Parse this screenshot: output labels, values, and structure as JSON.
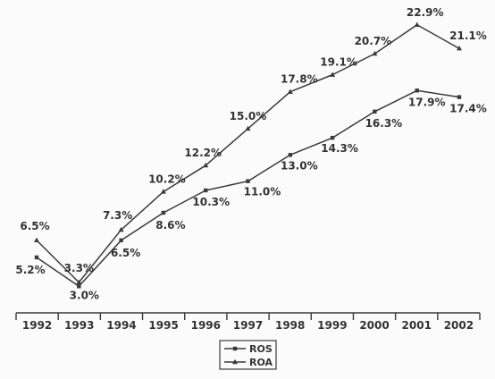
{
  "chart_data": {
    "type": "line",
    "categories": [
      "1992",
      "1993",
      "1994",
      "1995",
      "1996",
      "1997",
      "1998",
      "1999",
      "2000",
      "2001",
      "2002"
    ],
    "series": [
      {
        "name": "ROS",
        "values": [
          5.2,
          3.0,
          6.5,
          8.6,
          10.3,
          11.0,
          13.0,
          14.3,
          16.3,
          17.9,
          17.4
        ],
        "labels": [
          "5.2%",
          "3.0%",
          "6.5%",
          "8.6%",
          "10.3%",
          "11.0%",
          "13.0%",
          "14.3%",
          "16.3%",
          "17.9%",
          "17.4%"
        ],
        "marker": "square"
      },
      {
        "name": "ROA",
        "values": [
          6.5,
          3.3,
          7.3,
          10.2,
          12.2,
          15.0,
          17.8,
          19.1,
          20.7,
          22.9,
          21.1
        ],
        "labels": [
          "6.5%",
          "3.3%",
          "7.3%",
          "10.2%",
          "12.2%",
          "15.0%",
          "17.8%",
          "19.1%",
          "20.7%",
          "22.9%",
          "21.1%"
        ],
        "marker": "triangle"
      }
    ],
    "ylim": [
      0,
      25
    ],
    "legend_position": "bottom",
    "grid": false,
    "line_color": "#3a3a3a"
  }
}
